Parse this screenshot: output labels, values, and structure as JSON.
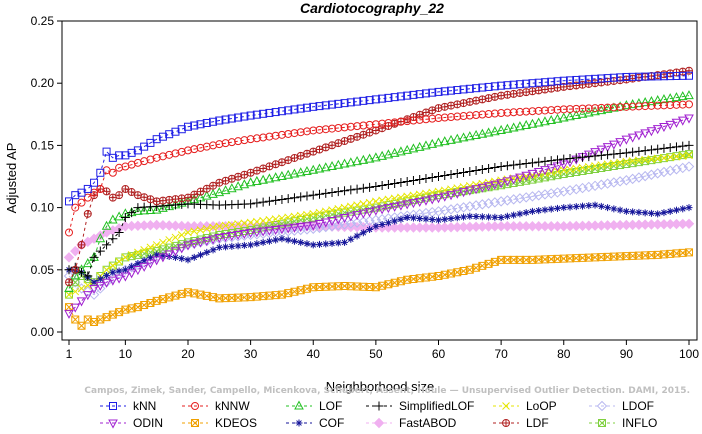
{
  "chart_data": {
    "type": "line",
    "title": "Cardiotocography_22",
    "xlabel": "Neighborhood size",
    "ylabel": "Adjusted AP",
    "xlim": [
      1,
      100
    ],
    "ylim": [
      0,
      0.25
    ],
    "x_ticks": [
      "1",
      "10",
      "20",
      "30",
      "40",
      "50",
      "60",
      "70",
      "80",
      "90",
      "100"
    ],
    "y_ticks": [
      "0.00",
      "0.05",
      "0.10",
      "0.15",
      "0.20",
      "0.25"
    ],
    "grid": false,
    "legend_position": "bottom",
    "series": [
      {
        "name": "kNN",
        "color": "#1f1fe6",
        "dash": "3,3",
        "marker": "square",
        "points": [
          [
            1,
            0.105
          ],
          [
            2,
            0.11
          ],
          [
            3,
            0.112
          ],
          [
            4,
            0.115
          ],
          [
            5,
            0.12
          ],
          [
            6,
            0.128
          ],
          [
            7,
            0.145
          ],
          [
            8,
            0.14
          ],
          [
            9,
            0.142
          ],
          [
            10,
            0.142
          ],
          [
            12,
            0.146
          ],
          [
            15,
            0.155
          ],
          [
            20,
            0.165
          ],
          [
            25,
            0.17
          ],
          [
            30,
            0.174
          ],
          [
            40,
            0.181
          ],
          [
            50,
            0.187
          ],
          [
            60,
            0.193
          ],
          [
            70,
            0.198
          ],
          [
            80,
            0.202
          ],
          [
            90,
            0.205
          ],
          [
            100,
            0.206
          ]
        ]
      },
      {
        "name": "kNNW",
        "color": "#e61f1f",
        "dash": "3,3",
        "marker": "circle",
        "points": [
          [
            1,
            0.08
          ],
          [
            2,
            0.1
          ],
          [
            3,
            0.104
          ],
          [
            4,
            0.108
          ],
          [
            5,
            0.112
          ],
          [
            6,
            0.115
          ],
          [
            7,
            0.13
          ],
          [
            8,
            0.128
          ],
          [
            9,
            0.132
          ],
          [
            10,
            0.133
          ],
          [
            12,
            0.136
          ],
          [
            15,
            0.14
          ],
          [
            20,
            0.146
          ],
          [
            25,
            0.151
          ],
          [
            30,
            0.155
          ],
          [
            40,
            0.162
          ],
          [
            50,
            0.167
          ],
          [
            60,
            0.172
          ],
          [
            70,
            0.176
          ],
          [
            80,
            0.179
          ],
          [
            90,
            0.181
          ],
          [
            100,
            0.183
          ]
        ]
      },
      {
        "name": "LOF",
        "color": "#22c022",
        "dash": "3,3",
        "marker": "triangle-up",
        "points": [
          [
            1,
            0.035
          ],
          [
            2,
            0.045
          ],
          [
            3,
            0.05
          ],
          [
            4,
            0.055
          ],
          [
            5,
            0.06
          ],
          [
            6,
            0.075
          ],
          [
            7,
            0.085
          ],
          [
            8,
            0.09
          ],
          [
            10,
            0.095
          ],
          [
            12,
            0.097
          ],
          [
            15,
            0.098
          ],
          [
            20,
            0.105
          ],
          [
            25,
            0.112
          ],
          [
            30,
            0.12
          ],
          [
            40,
            0.13
          ],
          [
            50,
            0.14
          ],
          [
            60,
            0.152
          ],
          [
            70,
            0.162
          ],
          [
            80,
            0.172
          ],
          [
            90,
            0.182
          ],
          [
            100,
            0.19
          ]
        ]
      },
      {
        "name": "SimplifiedLOF",
        "color": "#000000",
        "dash": "3,3",
        "marker": "plus",
        "points": [
          [
            1,
            0.05
          ],
          [
            2,
            0.052
          ],
          [
            3,
            0.048
          ],
          [
            4,
            0.045
          ],
          [
            5,
            0.06
          ],
          [
            6,
            0.065
          ],
          [
            7,
            0.07
          ],
          [
            8,
            0.075
          ],
          [
            9,
            0.08
          ],
          [
            10,
            0.092
          ],
          [
            12,
            0.1
          ],
          [
            15,
            0.101
          ],
          [
            20,
            0.103
          ],
          [
            25,
            0.102
          ],
          [
            30,
            0.103
          ],
          [
            40,
            0.11
          ],
          [
            50,
            0.117
          ],
          [
            60,
            0.125
          ],
          [
            70,
            0.133
          ],
          [
            80,
            0.139
          ],
          [
            90,
            0.144
          ],
          [
            100,
            0.15
          ]
        ]
      },
      {
        "name": "LoOP",
        "color": "#e6e600",
        "dash": "3,3",
        "marker": "cross",
        "points": [
          [
            1,
            0.03
          ],
          [
            3,
            0.035
          ],
          [
            5,
            0.04
          ],
          [
            7,
            0.05
          ],
          [
            10,
            0.06
          ],
          [
            15,
            0.07
          ],
          [
            20,
            0.08
          ],
          [
            25,
            0.085
          ],
          [
            30,
            0.088
          ],
          [
            40,
            0.095
          ],
          [
            50,
            0.105
          ],
          [
            60,
            0.113
          ],
          [
            70,
            0.122
          ],
          [
            80,
            0.13
          ],
          [
            90,
            0.137
          ],
          [
            100,
            0.142
          ]
        ]
      },
      {
        "name": "LDOF",
        "color": "#b8b8f0",
        "dash": "3,3",
        "marker": "diamond",
        "points": [
          [
            1,
            0.045
          ],
          [
            3,
            0.035
          ],
          [
            5,
            0.03
          ],
          [
            7,
            0.04
          ],
          [
            10,
            0.05
          ],
          [
            15,
            0.06
          ],
          [
            20,
            0.07
          ],
          [
            25,
            0.075
          ],
          [
            30,
            0.078
          ],
          [
            40,
            0.083
          ],
          [
            50,
            0.09
          ],
          [
            60,
            0.097
          ],
          [
            70,
            0.105
          ],
          [
            80,
            0.113
          ],
          [
            90,
            0.122
          ],
          [
            100,
            0.133
          ]
        ]
      },
      {
        "name": "ODIN",
        "color": "#a020d0",
        "dash": "3,3",
        "marker": "triangle-down",
        "points": [
          [
            1,
            0.015
          ],
          [
            2,
            0.02
          ],
          [
            3,
            0.025
          ],
          [
            4,
            0.03
          ],
          [
            5,
            0.035
          ],
          [
            7,
            0.04
          ],
          [
            10,
            0.045
          ],
          [
            15,
            0.058
          ],
          [
            20,
            0.07
          ],
          [
            25,
            0.076
          ],
          [
            30,
            0.08
          ],
          [
            40,
            0.086
          ],
          [
            50,
            0.098
          ],
          [
            60,
            0.108
          ],
          [
            70,
            0.12
          ],
          [
            80,
            0.135
          ],
          [
            90,
            0.155
          ],
          [
            100,
            0.172
          ]
        ]
      },
      {
        "name": "KDEOS",
        "color": "#f0a000",
        "dash": "3,3",
        "marker": "x-square",
        "points": [
          [
            1,
            0.02
          ],
          [
            2,
            0.01
          ],
          [
            3,
            0.005
          ],
          [
            4,
            0.01
          ],
          [
            5,
            0.008
          ],
          [
            7,
            0.012
          ],
          [
            10,
            0.018
          ],
          [
            12,
            0.02
          ],
          [
            15,
            0.025
          ],
          [
            20,
            0.032
          ],
          [
            25,
            0.027
          ],
          [
            30,
            0.028
          ],
          [
            35,
            0.03
          ],
          [
            40,
            0.036
          ],
          [
            45,
            0.037
          ],
          [
            50,
            0.036
          ],
          [
            55,
            0.042
          ],
          [
            60,
            0.045
          ],
          [
            65,
            0.05
          ],
          [
            70,
            0.058
          ],
          [
            75,
            0.058
          ],
          [
            80,
            0.059
          ],
          [
            85,
            0.06
          ],
          [
            90,
            0.061
          ],
          [
            95,
            0.062
          ],
          [
            100,
            0.064
          ]
        ]
      },
      {
        "name": "COF",
        "color": "#15159a",
        "dash": "3,3",
        "marker": "asterisk",
        "points": [
          [
            1,
            0.05
          ],
          [
            3,
            0.048
          ],
          [
            5,
            0.04
          ],
          [
            8,
            0.048
          ],
          [
            10,
            0.05
          ],
          [
            12,
            0.055
          ],
          [
            15,
            0.062
          ],
          [
            18,
            0.06
          ],
          [
            20,
            0.058
          ],
          [
            25,
            0.068
          ],
          [
            30,
            0.07
          ],
          [
            35,
            0.075
          ],
          [
            40,
            0.07
          ],
          [
            45,
            0.072
          ],
          [
            50,
            0.085
          ],
          [
            55,
            0.092
          ],
          [
            60,
            0.09
          ],
          [
            65,
            0.093
          ],
          [
            70,
            0.092
          ],
          [
            75,
            0.097
          ],
          [
            80,
            0.1
          ],
          [
            85,
            0.102
          ],
          [
            90,
            0.097
          ],
          [
            95,
            0.095
          ],
          [
            100,
            0.1
          ]
        ]
      },
      {
        "name": "FastABOD",
        "color": "#f0b0f0",
        "dash": "3,3",
        "marker": "diamond-filled",
        "points": [
          [
            1,
            0.06
          ],
          [
            3,
            0.07
          ],
          [
            5,
            0.075
          ],
          [
            7,
            0.08
          ],
          [
            10,
            0.085
          ],
          [
            15,
            0.086
          ],
          [
            20,
            0.085
          ],
          [
            30,
            0.085
          ],
          [
            40,
            0.085
          ],
          [
            50,
            0.084
          ],
          [
            60,
            0.084
          ],
          [
            70,
            0.085
          ],
          [
            80,
            0.085
          ],
          [
            90,
            0.086
          ],
          [
            100,
            0.087
          ]
        ]
      },
      {
        "name": "LDF",
        "color": "#b02020",
        "dash": "3,3",
        "marker": "circle-plus",
        "points": [
          [
            1,
            0.04
          ],
          [
            2,
            0.05
          ],
          [
            3,
            0.07
          ],
          [
            4,
            0.095
          ],
          [
            5,
            0.11
          ],
          [
            6,
            0.115
          ],
          [
            7,
            0.113
          ],
          [
            8,
            0.108
          ],
          [
            9,
            0.11
          ],
          [
            10,
            0.115
          ],
          [
            12,
            0.11
          ],
          [
            15,
            0.105
          ],
          [
            20,
            0.108
          ],
          [
            25,
            0.12
          ],
          [
            30,
            0.128
          ],
          [
            40,
            0.145
          ],
          [
            50,
            0.162
          ],
          [
            60,
            0.18
          ],
          [
            70,
            0.19
          ],
          [
            80,
            0.197
          ],
          [
            90,
            0.203
          ],
          [
            100,
            0.21
          ]
        ]
      },
      {
        "name": "INFLO",
        "color": "#80d040",
        "dash": "3,3",
        "marker": "x-square",
        "points": [
          [
            1,
            0.03
          ],
          [
            2,
            0.04
          ],
          [
            3,
            0.045
          ],
          [
            5,
            0.04
          ],
          [
            7,
            0.05
          ],
          [
            10,
            0.06
          ],
          [
            15,
            0.065
          ],
          [
            20,
            0.072
          ],
          [
            25,
            0.078
          ],
          [
            30,
            0.082
          ],
          [
            40,
            0.092
          ],
          [
            50,
            0.1
          ],
          [
            60,
            0.11
          ],
          [
            70,
            0.118
          ],
          [
            80,
            0.127
          ],
          [
            90,
            0.135
          ],
          [
            100,
            0.143
          ]
        ]
      }
    ]
  },
  "watermark": "Campos, Zimek, Sander, Campello, Micenkova, Schubert, Assent, Houle — Unsupervised Outlier Detection. DAMI, 2015."
}
